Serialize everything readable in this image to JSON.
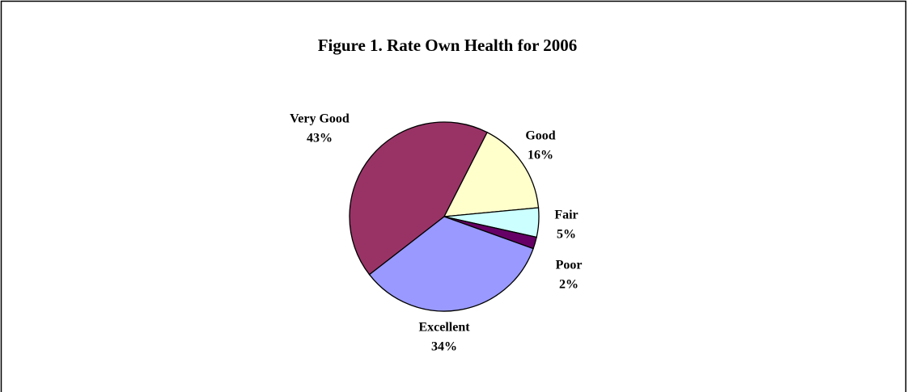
{
  "chart_data": {
    "type": "pie",
    "title": "Figure 1. Rate Own Health for 2006",
    "categories": [
      "Very Good",
      "Good",
      "Fair",
      "Poor",
      "Excellent"
    ],
    "values": [
      43,
      16,
      5,
      2,
      34
    ],
    "value_labels": [
      "43%",
      "16%",
      "5%",
      "2%",
      "34%"
    ],
    "colors": [
      "#993366",
      "#ffffcc",
      "#ccffff",
      "#660066",
      "#9999ff"
    ]
  }
}
